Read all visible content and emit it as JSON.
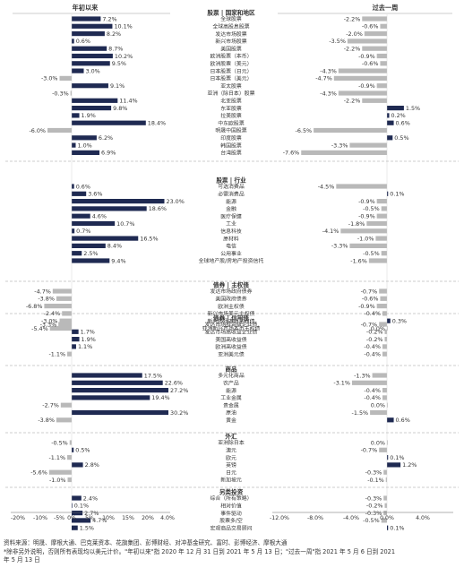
{
  "colors": {
    "positive": "#1f2a52",
    "negative": "#b9b9b9",
    "text": "#333333",
    "divider": "#9a9a9a"
  },
  "footer": {
    "source": "资料来源：明晟、摩根大通、巴克莱资本、花旗集团、彭博财经、对冲基金研究、富时、彭博经济、摩根大通",
    "note": "*除非另外说明，否则所有表现均以美元计价。\"年初以来\"指 2020 年 12 月 31 日到 2021 年 5 月 13 日；\"过去一周\"指 2021 年 5 月 6 日到 2021",
    "note2": "年 5 月 13 日"
  },
  "chart_data": [
    {
      "type": "bar",
      "title": "年初以来",
      "xlim": [
        -20,
        4
      ],
      "xticks": [
        "-20%",
        "-10%",
        "-5%",
        "0%",
        "5%",
        "10%",
        "15%",
        "20%",
        "4.0%"
      ]
    },
    {
      "type": "bar",
      "title": "过去一周",
      "xlim": [
        -12,
        4
      ],
      "xticks": [
        "-12.0%",
        "-8.0%",
        "-4.0%",
        "0.0%",
        "4.0%"
      ]
    },
    {
      "type": "bar",
      "sections": [
        {
          "header": "股票 | 国家和地区",
          "categories": [
            "全球股票",
            "全球高股息股票",
            "发达市场股票",
            "新兴市场股票",
            "美国股票",
            "欧洲股票（本币）",
            "欧洲股票（美元）",
            "日本股票（日元）",
            "日本股票（美元）",
            "亚太股票",
            "亚洲（除日本）股票",
            "北亚股票",
            "东亚股票",
            "拉美股票",
            "中东欧股票",
            "明晟中国股票",
            "印度股票",
            "韩国股票",
            "台湾股票"
          ],
          "ytd": [
            7.2,
            10.1,
            8.2,
            0.6,
            8.7,
            10.2,
            9.5,
            3.0,
            -3.0,
            9.1,
            -0.3,
            11.4,
            9.8,
            1.9,
            18.4,
            -6.0,
            6.2,
            1.0,
            6.9
          ],
          "week": [
            -2.2,
            -0.6,
            -2.0,
            -3.5,
            -2.2,
            -0.9,
            -0.6,
            -4.3,
            -4.7,
            -0.9,
            -4.3,
            -2.2,
            1.5,
            0.2,
            0.6,
            -6.5,
            0.5,
            -3.3,
            -7.6
          ]
        },
        {
          "header": "股票 | 行业",
          "categories": [
            "可选消费品",
            "必需消费品",
            "能源",
            "金融",
            "医疗保健",
            "工业",
            "信息科技",
            "原材料",
            "电信",
            "公用事业",
            "全球地产股/房地产投资信托"
          ],
          "ytd": [
            0.6,
            3.6,
            23.0,
            18.6,
            4.6,
            10.7,
            0.7,
            16.5,
            8.4,
            2.5,
            9.4
          ],
          "week": [
            -4.5,
            0.1,
            -0.9,
            -0.5,
            -0.9,
            -1.8,
            -4.1,
            -1.0,
            -3.3,
            -0.5,
            -1.6
          ]
        },
        {
          "header": "债券 | 主权债",
          "categories": [
            "发达市场政府债券",
            "美国政府债券",
            "欧洲主权债",
            "新兴市场美元主权债",
            "新兴市场本币主权债",
            "亚洲新兴市场本币主权债"
          ],
          "ytd": [
            -4.7,
            -3.8,
            -6.8,
            -2.4,
            -3.0,
            -5.4
          ],
          "week": [
            -0.7,
            -0.6,
            -0.9,
            -0.4,
            0.3,
            0.0
          ]
        },
        {
          "header": "债券 | 信用债",
          "categories": [
            "发达市场投资级企业债",
            "发达市场高收益企业债",
            "美国高收益债",
            "欧洲高收益债",
            "亚洲美元债"
          ],
          "ytd": [
            -3.3,
            1.7,
            1.9,
            1.1,
            -1.1
          ],
          "week": [
            -0.7,
            -0.2,
            -0.2,
            -0.4,
            -0.4
          ]
        },
        {
          "header": "商品",
          "categories": [
            "多元化商品",
            "农产品",
            "能源",
            "工业金属",
            "贵金属",
            "原油",
            "黄金"
          ],
          "ytd": [
            17.5,
            22.6,
            27.2,
            19.4,
            -2.7,
            30.2,
            -3.8
          ],
          "week": [
            -1.3,
            -3.1,
            -0.4,
            -0.4,
            0.0,
            -1.5,
            0.6
          ]
        },
        {
          "header": "外汇",
          "categories": [
            "亚洲除日本",
            "澳元",
            "欧元",
            "英镑",
            "日元",
            "新加坡元"
          ],
          "ytd": [
            -0.5,
            0.5,
            -1.1,
            2.8,
            -5.6,
            -1.0
          ],
          "week": [
            0.0,
            -0.7,
            0.1,
            1.2,
            -0.3,
            -0.1
          ]
        },
        {
          "header": "另类投资",
          "categories": [
            "综合（所有策略）",
            "相对价值",
            "事件驱动",
            "股票多/空",
            "宏观商品交易顾问"
          ],
          "ytd": [
            2.4,
            0.1,
            2.7,
            4.7,
            1.5
          ],
          "week": [
            -0.3,
            -0.2,
            -0.3,
            -0.5,
            0.1
          ]
        }
      ]
    }
  ]
}
